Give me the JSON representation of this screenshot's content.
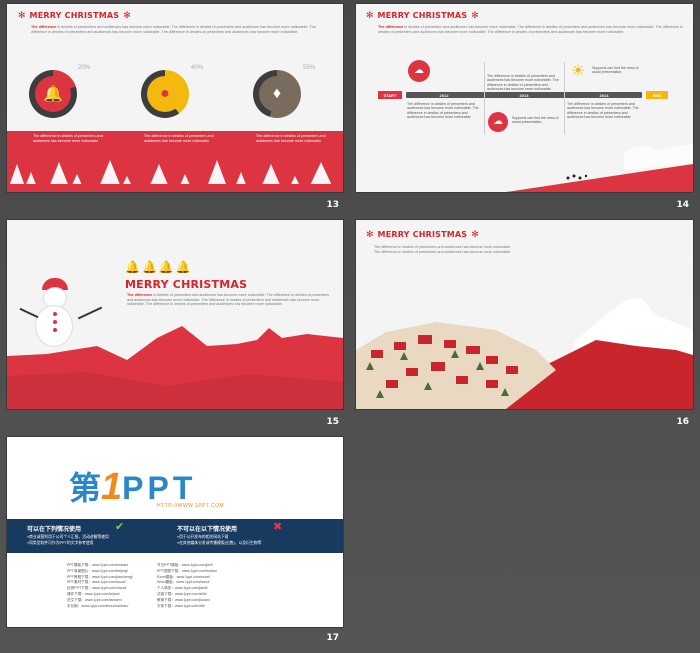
{
  "slides": [
    {
      "number": "13",
      "title": "MERRY CHRISTMAS",
      "body_lead": "The difference",
      "body": " in deslies of presenhers and audiences has become more noticeable. The difference in deslies of presenters and audiences has become more noticeable. The difference in deslies of presenters and audiences has become more noticeable. The difference in deslies of presenters and audiences has become more noticeable.",
      "rings": [
        {
          "percent": "20%",
          "value": 0.2,
          "color": "#dc3541",
          "icon": "bell-icon",
          "glyph": "🔔"
        },
        {
          "percent": "40%",
          "value": 0.4,
          "color": "#f5b80f",
          "icon": "ornament-icon",
          "glyph": "●"
        },
        {
          "percent": "55%",
          "value": 0.55,
          "color": "#7a6c5d",
          "icon": "stocking-icon",
          "glyph": "♦"
        }
      ],
      "captions": [
        "The difference in deslies of presenters and audiences has become more noticeable",
        "The difference in deslies of presenters and audiences has become more noticeable",
        "The difference in deslies of presenters and audiences has become more noticeable"
      ]
    },
    {
      "number": "14",
      "title": "MERRY CHRISTMAS",
      "body_lead": "The difference",
      "body": " in deslies of presenters and audiences has become more noticeable. The difference in deslies of presenters and audiences has become more noticeable. The difference in deslies of presenters and audiences has become more noticeable. The difference in deslies of presenters and audiences has become more noticeable.",
      "start_label": "START",
      "end_label": "END",
      "years": [
        "2012",
        "2013",
        "2014"
      ],
      "tl_texts": [
        "The difference in deslies of presenters and audiences has become more noticeable. The difference in deslies of presenters and audiences has become more noticeable.",
        "The difference in deslies of presenters and audiences has become more noticeable. The difference in deslies of presenters and audiences has become more noticeable.",
        "The difference in deslies of presenters and audiences has become more noticeable. The difference in deslies of presenters and audiences has become more noticeable."
      ],
      "bubble_texts": [
        "Supports can find the ness of usual presentation.",
        "Supports can find the ness of usual presentation."
      ]
    },
    {
      "number": "15",
      "title": "MERRY CHRISTMAS",
      "body_lead": "The difference",
      "body": " in deslies of presenters and audiences has become more noticeable. The difference in deslies of presenters and audiences has become more noticeable. The difference in deslies of presenters and audiences has become more noticeable. The difference in deslies of presenters and audiences has become more noticeable."
    },
    {
      "number": "16",
      "title": "MERRY CHRISTMAS",
      "body": "The difference in deslies of presenters and audiences has become more noticeable. The difference in deslies of presenters and audiences has become more noticeable."
    },
    {
      "number": "17",
      "logo_cn": "第",
      "logo_one": "1",
      "logo_ppt": "PPT",
      "logo_url": "HTTP://WWW.1PPT.COM",
      "can_title": "可以在下列情况使用",
      "cannot_title": "不可以在以下情况使用",
      "can_items": [
        "»商业或营利用于公司个人汇报，活动讲解等使用",
        "»同类型软件可作为PPT的文字参考使用"
      ],
      "cannot_items": [
        "»用于公开发布的相关网站下载",
        "»在其他媒体分发或传播模版(出售)，以及衍生物等"
      ],
      "links_left": [
        "PPT模板下载：www.1ppt.com/moban/",
        "PPT背景图片：www.1ppt.com/beijing/",
        "PPT教程下载：www.1ppt.com/jiaocheng/",
        "PPT素材下载：www.1ppt.com/sucai/",
        "优秀PPT下载：www.1ppt.com/xiazai/",
        "课件下载：www.1ppt.com/kejian/",
        "范文下载：www.1ppt.com/fanwen/",
        "手抄报：www.1ppt.com/shouchaobao/"
      ],
      "links_right": [
        "节日PPT模板：www.1ppt.com/jieri/",
        "PPT图表下载：www.1ppt.com/tubiao/",
        "Excel模板：www.1ppt.com/excel/",
        "Word模板：www.1ppt.com/word/",
        "个人简历：www.1ppt.com/jianli/",
        "试卷下载：www.1ppt.com/shiti/",
        "教案下载：www.1ppt.com/jiaoan/",
        "字体下载：www.1ppt.com/ziti/"
      ]
    }
  ],
  "colors": {
    "red": "#dc3541",
    "navy": "#173a5e",
    "gold": "#f5b80f"
  }
}
